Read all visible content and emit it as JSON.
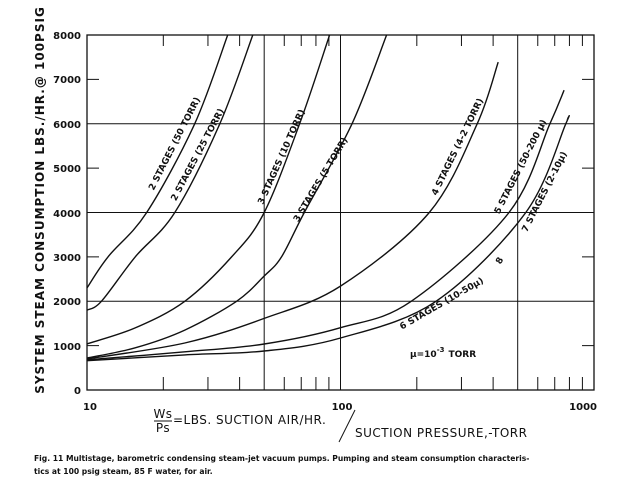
{
  "chart_data": {
    "type": "line",
    "x_scale": "log",
    "xlim": [
      10,
      1000
    ],
    "ylim": [
      0,
      8000
    ],
    "grid": true,
    "x_ticks": [
      "10",
      "100",
      "1000"
    ],
    "y_ticks": [
      "0",
      "1000",
      "2000",
      "3000",
      "4000",
      "5000",
      "6000",
      "7000",
      "8000"
    ],
    "ylabel": "SYSTEM STEAM CONSUMPTION LBS./HR.@ 100PSIG",
    "xlabel_fraction_num": "Ws",
    "xlabel_fraction_den": "Ps",
    "xlabel_part1": "=LBS. SUCTION AIR/HR.",
    "xlabel_part2": "SUCTION PRESSURE,-TORR",
    "annotation": "µ=10",
    "annotation_exp": "-3",
    "annotation_unit": "TORR",
    "series": [
      {
        "name": "2 STAGES (50 TORR)",
        "points": [
          [
            10,
            2300
          ],
          [
            12.1,
            3000
          ],
          [
            17.2,
            4000
          ],
          [
            26.6,
            6000
          ],
          [
            35.9,
            8000
          ]
        ]
      },
      {
        "name": "2 STAGES (25 TORR)",
        "points": [
          [
            10,
            1800
          ],
          [
            11.4,
            2000
          ],
          [
            15.5,
            3000
          ],
          [
            22.2,
            4000
          ],
          [
            33.4,
            6000
          ],
          [
            45.1,
            8000
          ]
        ]
      },
      {
        "name": "3 STAGES (10 TORR)",
        "points": [
          [
            10,
            1040
          ],
          [
            15.5,
            1400
          ],
          [
            24.3,
            2000
          ],
          [
            37.2,
            3000
          ],
          [
            50,
            4000
          ],
          [
            69,
            6000
          ],
          [
            90.6,
            8000
          ]
        ]
      },
      {
        "name": "3 STAGES (5 TORR)",
        "points": [
          [
            10,
            720
          ],
          [
            15.5,
            950
          ],
          [
            24.3,
            1350
          ],
          [
            38.9,
            2000
          ],
          [
            50,
            2570
          ],
          [
            58.5,
            3000
          ],
          [
            72,
            4000
          ],
          [
            111,
            6000
          ],
          [
            152,
            8000
          ]
        ]
      },
      {
        "name": "4 STAGES (4-2 TORR)",
        "points": [
          [
            10,
            700
          ],
          [
            24.3,
            1060
          ],
          [
            50,
            1614
          ],
          [
            100,
            2342
          ],
          [
            224,
            4000
          ],
          [
            346,
            6000
          ],
          [
            419,
            7390
          ]
        ]
      },
      {
        "name": "5 STAGES (50-200 µ)",
        "points": [
          [
            10,
            680
          ],
          [
            24.3,
            860
          ],
          [
            50,
            1036
          ],
          [
            100,
            1403
          ],
          [
            190,
            2000
          ],
          [
            462,
            4000
          ],
          [
            670,
            6000
          ],
          [
            762,
            6757
          ]
        ]
      },
      {
        "name": "7 STAGES (2-10µ)",
        "points": [
          [
            10,
            660
          ],
          [
            24.3,
            790
          ],
          [
            50,
            878
          ],
          [
            100,
            1171
          ],
          [
            238,
            2000
          ],
          [
            538,
            4000
          ],
          [
            774,
            6000
          ],
          [
            785,
            6100
          ]
        ]
      }
    ],
    "extra_labels": [
      "6 STAGES (10-50µ)",
      "8"
    ]
  },
  "caption": {
    "line1": "Fig. 11   Multistage, barometric condensing steam-jet vacuum pumps.   Pumping and steam consumption characteris-",
    "line2": "tics at 100 psig steam, 85 F water, for air."
  }
}
